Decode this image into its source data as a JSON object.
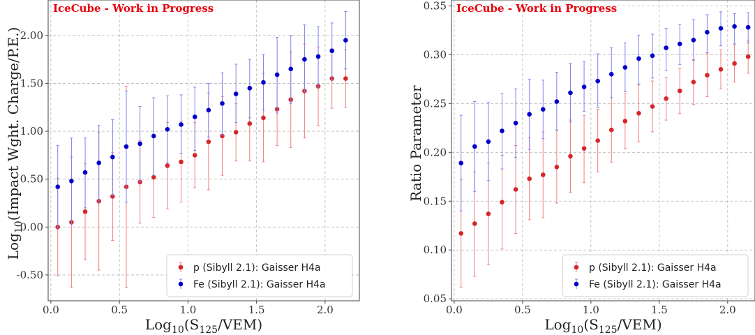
{
  "chart_data": [
    {
      "type": "scatter",
      "annotation": "IceCube - Work in Progress",
      "xlabel": {
        "base": "Log",
        "base_sub": "10",
        "open": "(S",
        "sub": "125",
        "rest": "/VEM)"
      },
      "ylabel": {
        "base": "Log",
        "base_sub": "10",
        "rest": "(Impact Wght. Charge/P.E.)"
      },
      "xlim": [
        -0.02,
        2.25
      ],
      "ylim": [
        -0.77,
        2.37
      ],
      "xticks": [
        0.0,
        0.5,
        1.0,
        1.5,
        2.0
      ],
      "xticklabels": [
        "0.0",
        "0.5",
        "1.0",
        "1.5",
        "2.0"
      ],
      "yticks": [
        -0.5,
        0.0,
        0.5,
        1.0,
        1.5,
        2.0
      ],
      "yticklabels": [
        "-0.50",
        "0.00",
        "0.50",
        "1.00",
        "1.50",
        "2.00"
      ],
      "grid": true,
      "legend_position": "lower-right",
      "series": [
        {
          "name": "p (Sibyll 2.1): Gaisser H4a",
          "color": "#d62728",
          "err_color": "#f08080",
          "x": [
            0.05,
            0.15,
            0.25,
            0.35,
            0.45,
            0.55,
            0.65,
            0.75,
            0.85,
            0.95,
            1.05,
            1.15,
            1.25,
            1.35,
            1.45,
            1.55,
            1.65,
            1.75,
            1.85,
            1.95,
            2.05,
            2.15
          ],
          "y": [
            0.0,
            0.05,
            0.16,
            0.27,
            0.32,
            0.42,
            0.47,
            0.52,
            0.64,
            0.68,
            0.75,
            0.89,
            0.95,
            0.99,
            1.08,
            1.14,
            1.23,
            1.33,
            1.42,
            1.47,
            1.55,
            1.55
          ],
          "y_lo": [
            -0.51,
            -0.63,
            -0.34,
            -0.45,
            -0.14,
            -0.63,
            0.04,
            0.1,
            0.19,
            0.26,
            0.41,
            0.39,
            0.54,
            0.69,
            0.69,
            0.68,
            0.85,
            0.83,
            0.93,
            1.06,
            1.24,
            1.25
          ],
          "y_hi": [
            0.51,
            0.73,
            0.66,
            0.99,
            0.78,
            1.47,
            0.9,
            0.94,
            1.09,
            1.1,
            1.09,
            1.4,
            1.36,
            1.29,
            1.47,
            1.6,
            1.61,
            1.83,
            1.91,
            1.88,
            1.86,
            1.85
          ]
        },
        {
          "name": "Fe (Sibyll 2.1): Gaisser H4a",
          "color": "#0000c8",
          "err_color": "#8080f0",
          "x": [
            0.05,
            0.15,
            0.25,
            0.35,
            0.45,
            0.55,
            0.65,
            0.75,
            0.85,
            0.95,
            1.05,
            1.15,
            1.25,
            1.35,
            1.45,
            1.55,
            1.65,
            1.75,
            1.85,
            1.95,
            2.05,
            2.15
          ],
          "y": [
            0.42,
            0.48,
            0.57,
            0.67,
            0.73,
            0.84,
            0.87,
            0.95,
            1.02,
            1.07,
            1.15,
            1.22,
            1.29,
            1.39,
            1.45,
            1.51,
            1.59,
            1.65,
            1.75,
            1.78,
            1.84,
            1.95
          ],
          "y_lo": [
            -0.01,
            0.03,
            0.2,
            0.26,
            0.33,
            0.26,
            0.47,
            0.54,
            0.67,
            0.77,
            0.8,
            0.94,
            0.96,
            1.09,
            1.14,
            1.22,
            1.19,
            1.29,
            1.41,
            1.46,
            1.54,
            1.65
          ],
          "y_hi": [
            0.85,
            0.93,
            0.93,
            1.06,
            1.12,
            1.42,
            1.26,
            1.35,
            1.37,
            1.38,
            1.46,
            1.5,
            1.61,
            1.7,
            1.75,
            1.8,
            1.98,
            2.0,
            2.11,
            2.09,
            2.13,
            2.25
          ]
        }
      ]
    },
    {
      "type": "scatter",
      "annotation": "IceCube - Work in Progress",
      "xlabel": {
        "base": "Log",
        "base_sub": "10",
        "open": "(S",
        "sub": "125",
        "rest": "/VEM)"
      },
      "ylabel": {
        "base": "",
        "base_sub": "",
        "rest": "Ratio Parameter"
      },
      "xlim": [
        -0.02,
        2.2
      ],
      "ylim": [
        0.048,
        0.356
      ],
      "xticks": [
        0.0,
        0.5,
        1.0,
        1.5,
        2.0
      ],
      "xticklabels": [
        "0.0",
        "0.5",
        "1.0",
        "1.5",
        "2.0"
      ],
      "yticks": [
        0.05,
        0.1,
        0.15,
        0.2,
        0.25,
        0.3,
        0.35
      ],
      "yticklabels": [
        "0.05",
        "0.10",
        "0.15",
        "0.20",
        "0.25",
        "0.30",
        "0.35"
      ],
      "grid": true,
      "legend_position": "lower-right",
      "series": [
        {
          "name": "p (Sibyll 2.1): Gaisser H4a",
          "color": "#d62728",
          "err_color": "#f08080",
          "x": [
            0.05,
            0.15,
            0.25,
            0.35,
            0.45,
            0.55,
            0.65,
            0.75,
            0.85,
            0.95,
            1.05,
            1.15,
            1.25,
            1.35,
            1.45,
            1.55,
            1.65,
            1.75,
            1.85,
            1.95,
            2.05,
            2.15
          ],
          "y": [
            0.117,
            0.127,
            0.137,
            0.149,
            0.162,
            0.173,
            0.177,
            0.185,
            0.196,
            0.204,
            0.212,
            0.223,
            0.232,
            0.24,
            0.247,
            0.255,
            0.263,
            0.272,
            0.279,
            0.285,
            0.291,
            0.298
          ],
          "y_lo": [
            0.062,
            0.073,
            0.085,
            0.101,
            0.117,
            0.131,
            0.133,
            0.148,
            0.159,
            0.169,
            0.18,
            0.19,
            0.204,
            0.211,
            0.221,
            0.233,
            0.24,
            0.249,
            0.257,
            0.265,
            0.272,
            0.281
          ],
          "y_hi": [
            0.172,
            0.18,
            0.189,
            0.197,
            0.207,
            0.215,
            0.221,
            0.222,
            0.233,
            0.238,
            0.244,
            0.256,
            0.26,
            0.269,
            0.273,
            0.277,
            0.286,
            0.295,
            0.301,
            0.305,
            0.31,
            0.315
          ]
        },
        {
          "name": "Fe (Sibyll 2.1): Gaisser H4a",
          "color": "#0000c8",
          "err_color": "#8080f0",
          "x": [
            0.05,
            0.15,
            0.25,
            0.35,
            0.45,
            0.55,
            0.65,
            0.75,
            0.85,
            0.95,
            1.05,
            1.15,
            1.25,
            1.35,
            1.45,
            1.55,
            1.65,
            1.75,
            1.85,
            1.95,
            2.05,
            2.15
          ],
          "y": [
            0.189,
            0.206,
            0.211,
            0.222,
            0.23,
            0.239,
            0.244,
            0.252,
            0.261,
            0.267,
            0.273,
            0.28,
            0.287,
            0.296,
            0.299,
            0.307,
            0.311,
            0.315,
            0.323,
            0.327,
            0.329,
            0.328
          ],
          "y_lo": [
            0.14,
            0.16,
            0.171,
            0.183,
            0.195,
            0.203,
            0.214,
            0.223,
            0.231,
            0.242,
            0.246,
            0.256,
            0.262,
            0.27,
            0.276,
            0.284,
            0.29,
            0.294,
            0.302,
            0.309,
            0.311,
            0.312
          ],
          "y_hi": [
            0.238,
            0.252,
            0.251,
            0.26,
            0.265,
            0.275,
            0.274,
            0.282,
            0.291,
            0.293,
            0.301,
            0.307,
            0.312,
            0.32,
            0.321,
            0.327,
            0.331,
            0.336,
            0.341,
            0.344,
            0.342,
            0.343
          ]
        }
      ]
    }
  ]
}
